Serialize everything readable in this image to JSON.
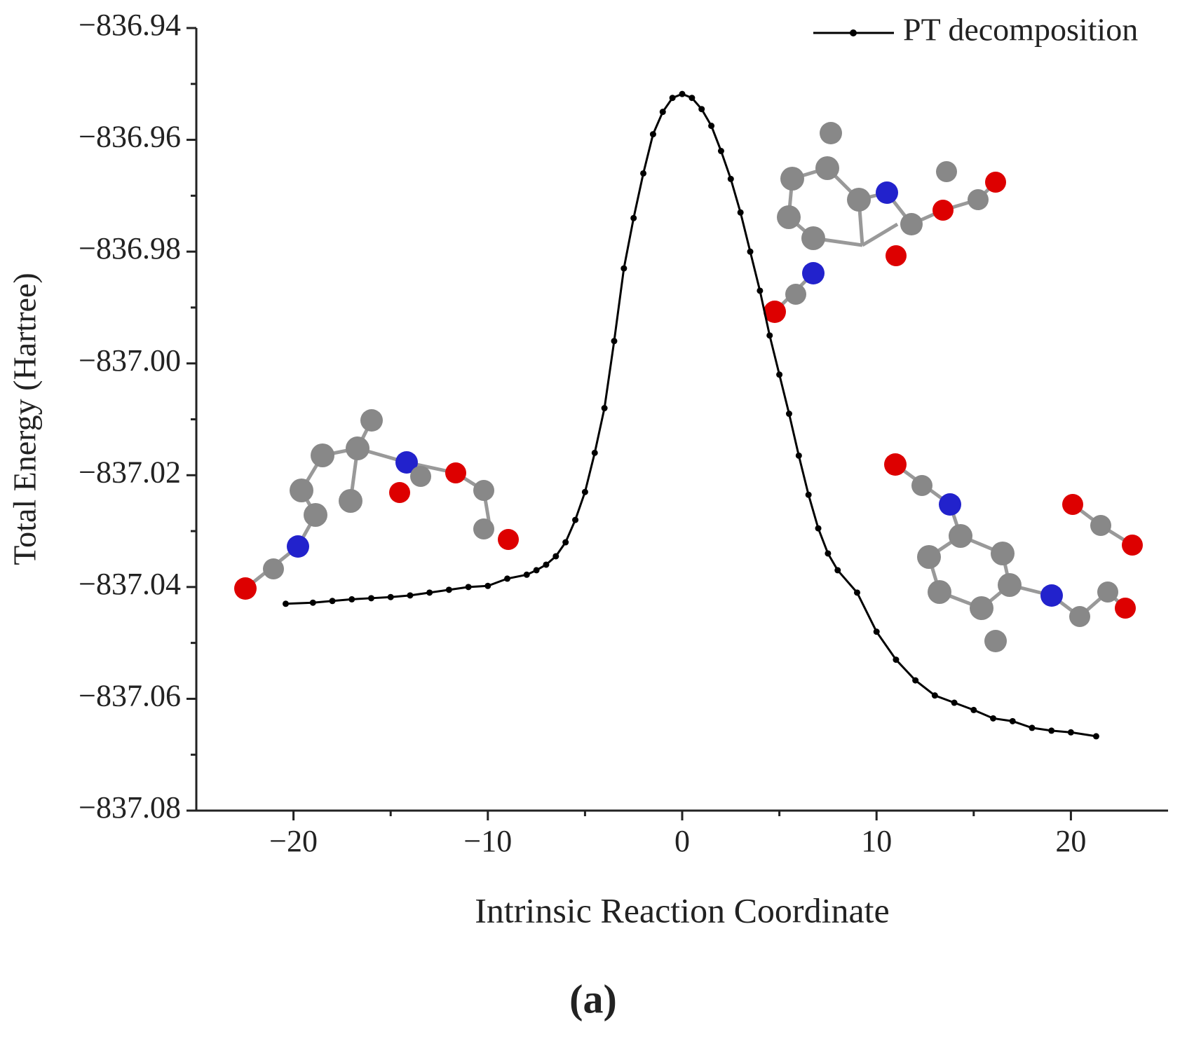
{
  "chart_data": {
    "type": "line",
    "caption": "(a)",
    "xlabel": "Intrinsic Reaction Coordinate",
    "ylabel": "Total Energy (Hartree)",
    "legend": "upper right",
    "xlim": [
      -25,
      25
    ],
    "ylim": [
      -837.08,
      -836.94
    ],
    "xticks": [
      {
        "value": -20,
        "label": "−20"
      },
      {
        "value": -10,
        "label": "−10"
      },
      0,
      10,
      20
    ],
    "xminor_ticks": [
      -15,
      -5,
      5,
      15
    ],
    "yticks": [
      {
        "value": -837.08,
        "label": "−837.08"
      },
      {
        "value": -837.06,
        "label": "−837.06"
      },
      {
        "value": -837.04,
        "label": "−837.04"
      },
      {
        "value": -837.02,
        "label": "−837.02"
      },
      {
        "value": -837.0,
        "label": "−837.00"
      },
      {
        "value": -836.98,
        "label": "−836.98"
      },
      {
        "value": -836.96,
        "label": "−836.96"
      },
      {
        "value": -836.94,
        "label": "−836.94"
      }
    ],
    "yminor_ticks": [
      -837.07,
      -837.05,
      -837.03,
      -837.01,
      -836.99,
      -836.97,
      -836.95
    ],
    "x": [
      -20.4,
      -19,
      -18,
      -17,
      -16,
      -15,
      -14,
      -13,
      -12,
      -11,
      -10,
      -9,
      -8,
      -7.5,
      -7,
      -6.5,
      -6,
      -5.5,
      -5,
      -4.5,
      -4,
      -3.5,
      -3,
      -2.5,
      -2,
      -1.5,
      -1,
      -0.5,
      0,
      0.5,
      1,
      1.5,
      2,
      2.5,
      3,
      3.5,
      4,
      4.5,
      5,
      5.5,
      6,
      6.5,
      7,
      7.5,
      8,
      9,
      10,
      11,
      12,
      13,
      14,
      15,
      16,
      17,
      18,
      19,
      20,
      21.3
    ],
    "series": [
      {
        "name": "PT decomposition",
        "color": "#000000",
        "values": [
          -837.043,
          -837.0428,
          -837.0425,
          -837.0422,
          -837.042,
          -837.0418,
          -837.0415,
          -837.041,
          -837.0405,
          -837.04,
          -837.0398,
          -837.0385,
          -837.0378,
          -837.037,
          -837.036,
          -837.0345,
          -837.032,
          -837.028,
          -837.023,
          -837.016,
          -837.008,
          -836.996,
          -836.983,
          -836.974,
          -836.966,
          -836.959,
          -836.955,
          -836.9525,
          -836.9518,
          -836.9525,
          -836.9545,
          -836.9575,
          -836.962,
          -836.967,
          -836.973,
          -836.98,
          -836.987,
          -836.995,
          -837.002,
          -837.009,
          -837.0165,
          -837.0235,
          -837.0295,
          -837.034,
          -837.037,
          -837.041,
          -837.048,
          -837.053,
          -837.0567,
          -837.0594,
          -837.0607,
          -837.062,
          -837.0635,
          -837.064,
          -837.0652,
          -837.0657,
          -837.066,
          -837.0667
        ]
      }
    ]
  }
}
